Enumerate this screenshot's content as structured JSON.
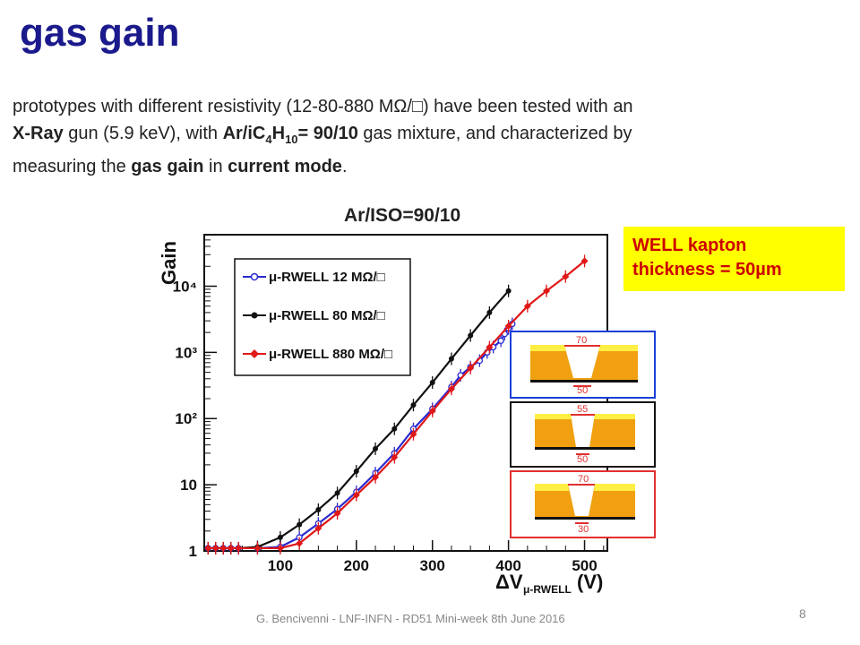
{
  "title": "gas gain",
  "paragraph": {
    "p1": "prototypes with different resistivity (12-80-880 MΩ/□) have been tested with an",
    "xray": "X-Ray",
    "p2": " gun (5.9 keV), with ",
    "mix_a": "Ar/iC",
    "mix_sub1": "4",
    "mix_b": "H",
    "mix_sub2": "10",
    "mix_c": "= 90/10",
    "p3": " gas mixture, and characterized by",
    "p4": "measuring the ",
    "gain_word": "gas gain",
    "p5": " in ",
    "mode_word": "current mode",
    "p6": "."
  },
  "box": {
    "line1": "WELL kapton",
    "line2": "thickness = 50µm"
  },
  "insets": [
    {
      "top_label": "70",
      "bottom_label": "50",
      "frame_color": "#1a3fd8"
    },
    {
      "top_label": "55",
      "bottom_label": "50",
      "frame_color": "#111111"
    },
    {
      "top_label": "70",
      "bottom_label": "30",
      "frame_color": "#e33030"
    }
  ],
  "footer": "G. Bencivenni - LNF-INFN - RD51 Mini-week 8th June 2016",
  "page_number": "8",
  "chart_data": {
    "type": "line",
    "title": "Ar/ISO=90/10",
    "ylabel": "Gain",
    "xlabel_main": "ΔV",
    "xlabel_sub": "μ-RWELL",
    "xlabel_unit": "(V)",
    "xlim": [
      0,
      530
    ],
    "ylim": [
      1,
      60000
    ],
    "yscale": "log",
    "x_ticks": [
      "100",
      "200",
      "300",
      "400",
      "500"
    ],
    "x_tick_values": [
      100,
      200,
      300,
      400,
      500
    ],
    "y_ticks": [
      "1",
      "10",
      "10²",
      "10³",
      "10⁴"
    ],
    "y_tick_values": [
      1,
      10,
      100,
      1000,
      10000
    ],
    "legend_position": "top-left",
    "series": [
      {
        "name": "μ-RWELL  12 MΩ/□",
        "color": "#2a2ad0",
        "marker": "open-circle",
        "x": [
          5,
          15,
          25,
          35,
          45,
          70,
          100,
          125,
          150,
          175,
          200,
          225,
          250,
          275,
          300,
          325,
          337,
          350,
          362,
          372,
          380,
          390,
          395,
          400,
          405
        ],
        "y": [
          1.1,
          1.1,
          1.1,
          1.1,
          1.1,
          1.1,
          1.15,
          1.6,
          2.6,
          4.3,
          7.8,
          15,
          30,
          70,
          140,
          300,
          450,
          600,
          750,
          1000,
          1200,
          1500,
          1900,
          2300,
          2700
        ]
      },
      {
        "name": "μ-RWELL  80 MΩ/□",
        "color": "#111111",
        "marker": "filled-circle",
        "x": [
          5,
          15,
          25,
          35,
          45,
          70,
          100,
          125,
          150,
          175,
          200,
          225,
          250,
          275,
          300,
          325,
          350,
          375,
          400
        ],
        "y": [
          1.1,
          1.1,
          1.1,
          1.1,
          1.1,
          1.15,
          1.6,
          2.5,
          4.2,
          7.5,
          16,
          35,
          70,
          160,
          350,
          800,
          1800,
          4000,
          8500
        ]
      },
      {
        "name": "μ-RWELL  880 MΩ/□",
        "color": "#e01818",
        "marker": "filled-diamond",
        "x": [
          5,
          15,
          25,
          35,
          45,
          70,
          100,
          125,
          150,
          175,
          200,
          225,
          250,
          275,
          300,
          325,
          350,
          375,
          400,
          425,
          450,
          475,
          500
        ],
        "y": [
          1.1,
          1.1,
          1.1,
          1.1,
          1.1,
          1.1,
          1.1,
          1.3,
          2.2,
          3.7,
          7,
          13,
          26,
          58,
          130,
          280,
          580,
          1200,
          2500,
          5000,
          8500,
          14000,
          24000
        ]
      }
    ]
  }
}
